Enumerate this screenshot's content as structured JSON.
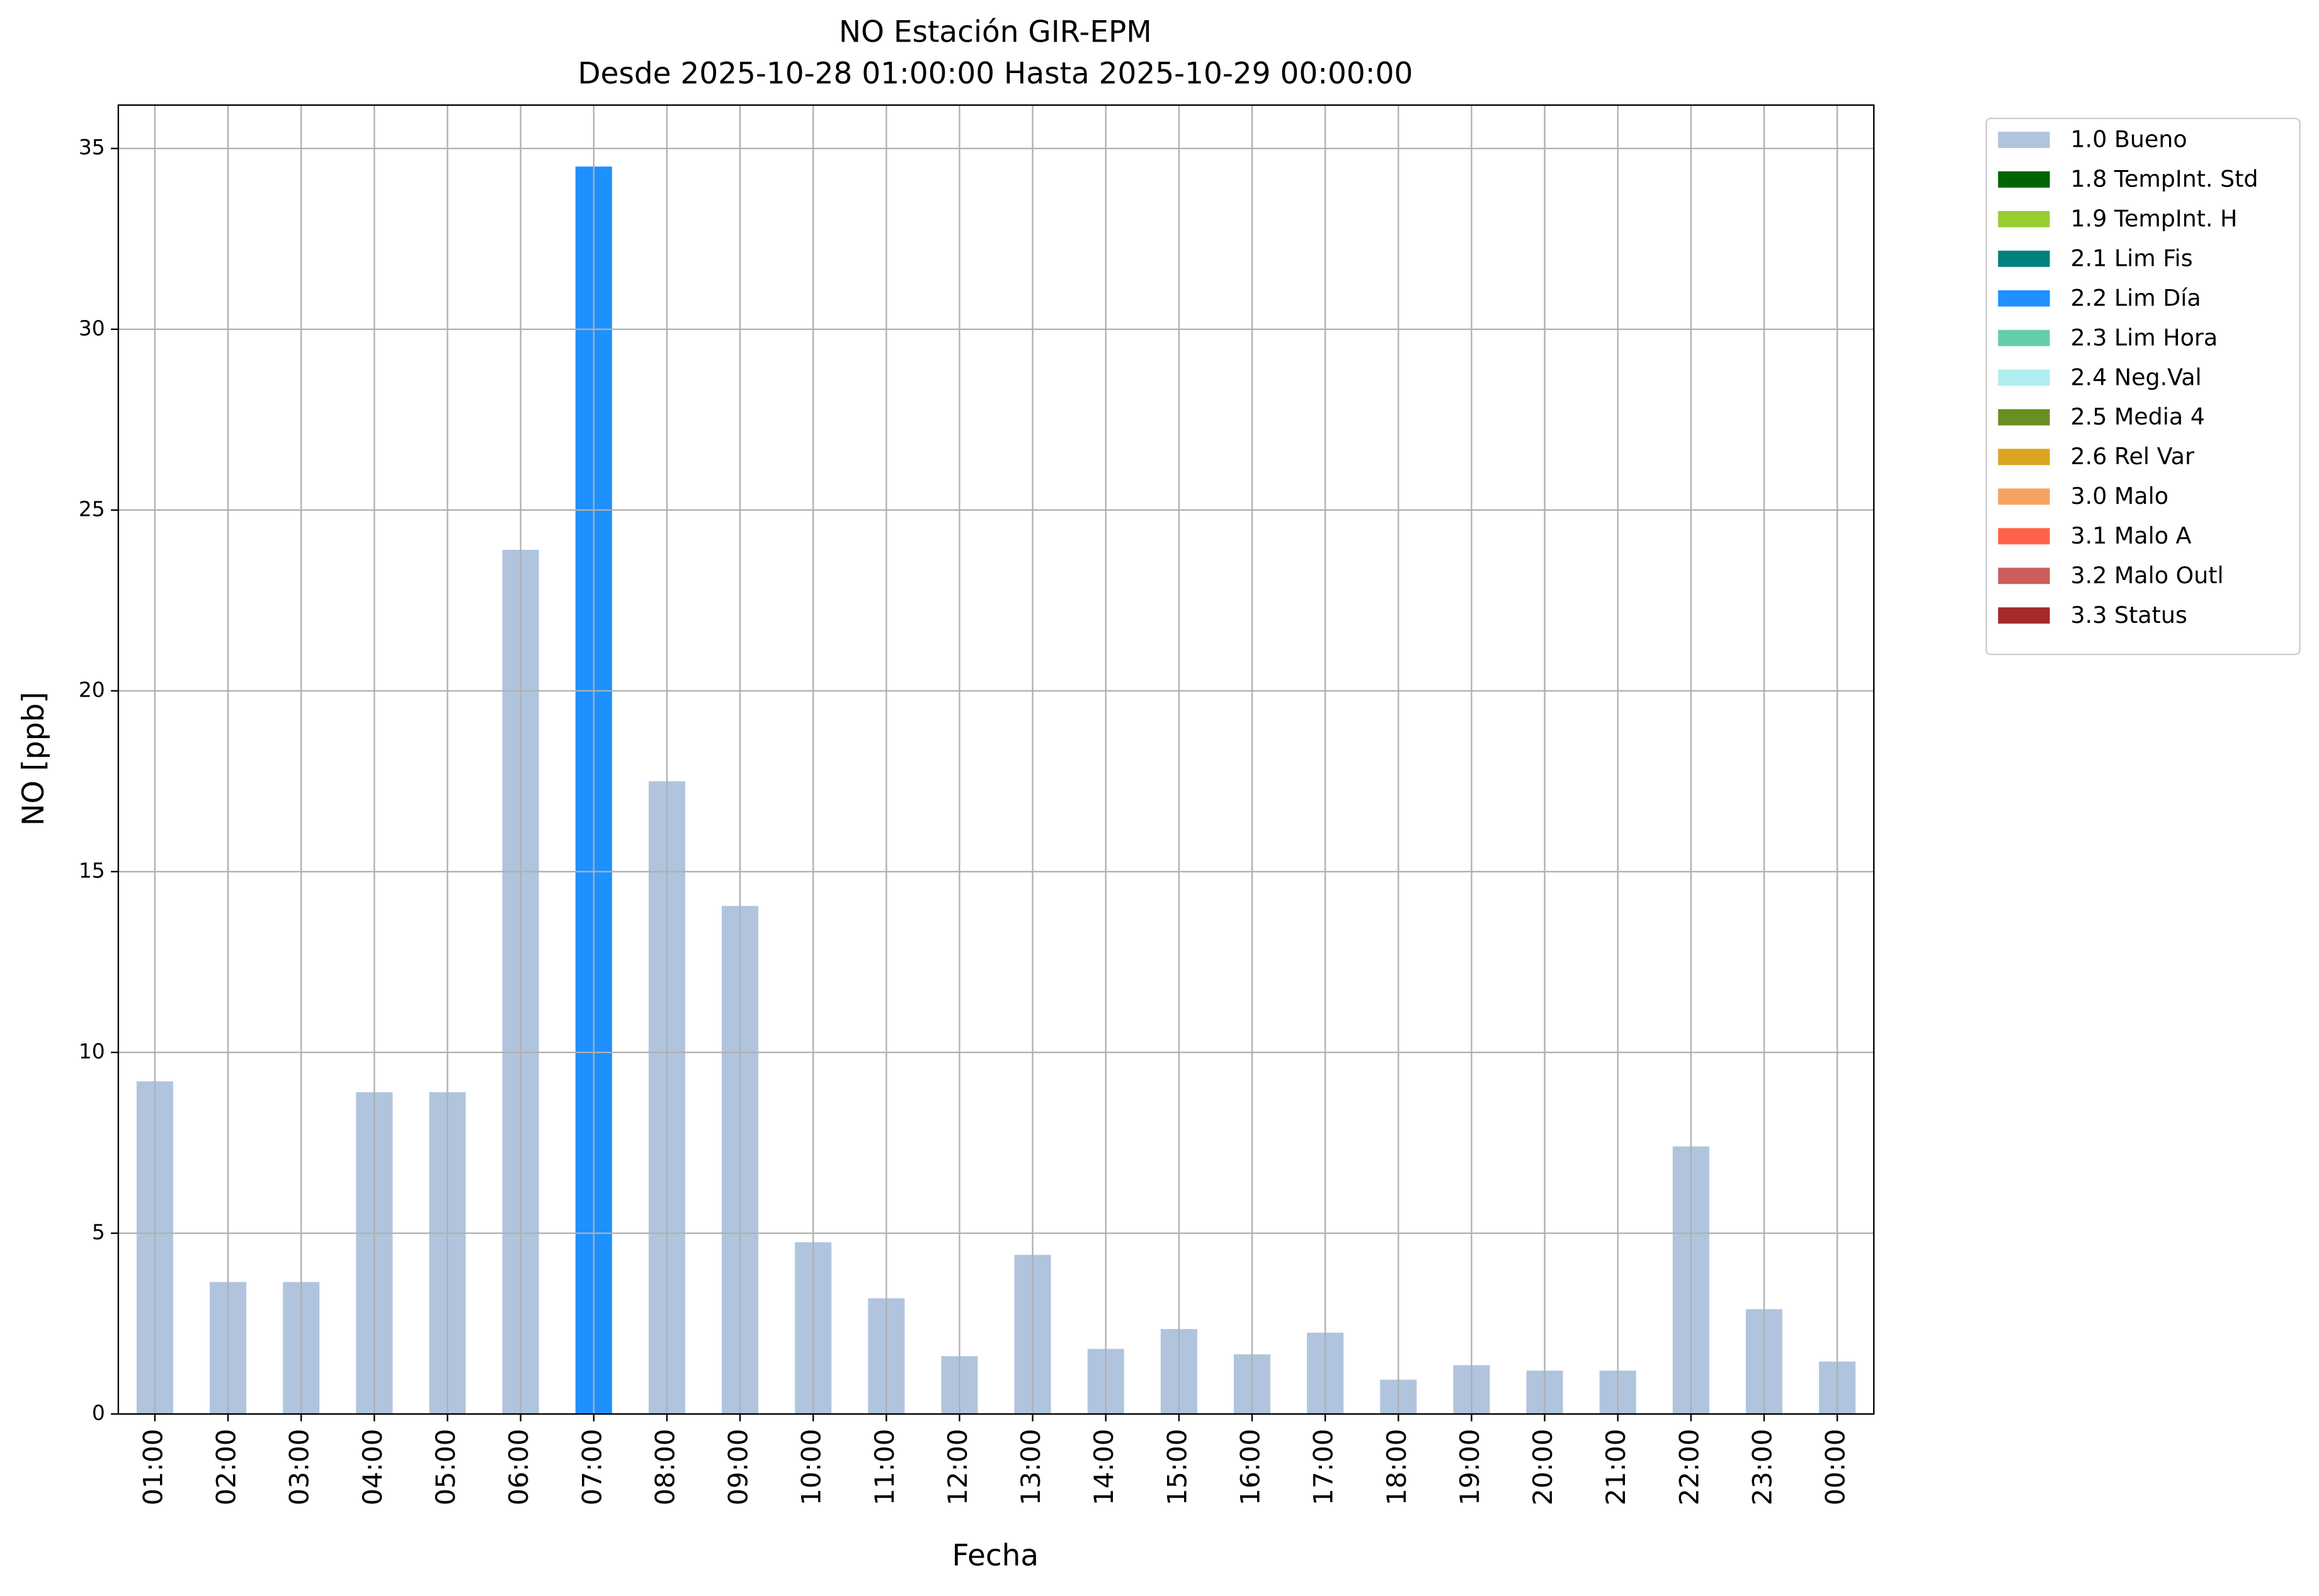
{
  "chart_data": {
    "type": "stacked-bar",
    "title": "NO Estación GIR-EPM",
    "subtitle": "Desde 2025-10-28 01:00:00 Hasta 2025-10-29 00:00:00",
    "x_label": "Fecha",
    "y_label": "NO [ppb]",
    "categories": [
      "01:00",
      "02:00",
      "03:00",
      "04:00",
      "05:00",
      "06:00",
      "07:00",
      "08:00",
      "09:00",
      "10:00",
      "11:00",
      "12:00",
      "13:00",
      "14:00",
      "15:00",
      "16:00",
      "17:00",
      "18:00",
      "19:00",
      "20:00",
      "21:00",
      "22:00",
      "23:00",
      "00:00"
    ],
    "series": [
      {
        "name": "1.0 Bueno",
        "color": "#b0c4de",
        "values": [
          9.2,
          3.65,
          3.65,
          8.9,
          8.9,
          23.9,
          null,
          17.5,
          14.05,
          4.75,
          3.2,
          1.6,
          4.4,
          1.8,
          2.35,
          1.65,
          2.25,
          0.95,
          1.35,
          1.2,
          1.2,
          7.4,
          2.9,
          1.45
        ]
      },
      {
        "name": "1.8 TempInt. Std",
        "color": "#006400",
        "values": [
          null,
          null,
          null,
          null,
          null,
          null,
          null,
          null,
          null,
          null,
          null,
          null,
          null,
          null,
          null,
          null,
          null,
          null,
          null,
          null,
          null,
          null,
          null,
          null
        ]
      },
      {
        "name": "1.9 TempInt. H",
        "color": "#9acd32",
        "values": [
          null,
          null,
          null,
          null,
          null,
          null,
          null,
          null,
          null,
          null,
          null,
          null,
          null,
          null,
          null,
          null,
          null,
          null,
          null,
          null,
          null,
          null,
          null,
          null
        ]
      },
      {
        "name": "2.1 Lim Fis",
        "color": "#008080",
        "values": [
          null,
          null,
          null,
          null,
          null,
          null,
          null,
          null,
          null,
          null,
          null,
          null,
          null,
          null,
          null,
          null,
          null,
          null,
          null,
          null,
          null,
          null,
          null,
          null
        ]
      },
      {
        "name": "2.2 Lim Día",
        "color": "#1e90ff",
        "values": [
          null,
          null,
          null,
          null,
          null,
          null,
          34.5,
          null,
          null,
          null,
          null,
          null,
          null,
          null,
          null,
          null,
          null,
          null,
          null,
          null,
          null,
          null,
          null,
          null
        ]
      },
      {
        "name": "2.3 Lim Hora",
        "color": "#66cdaa",
        "values": [
          null,
          null,
          null,
          null,
          null,
          null,
          null,
          null,
          null,
          null,
          null,
          null,
          null,
          null,
          null,
          null,
          null,
          null,
          null,
          null,
          null,
          null,
          null,
          null
        ]
      },
      {
        "name": "2.4 Neg.Val",
        "color": "#afeeee",
        "values": [
          null,
          null,
          null,
          null,
          null,
          null,
          null,
          null,
          null,
          null,
          null,
          null,
          null,
          null,
          null,
          null,
          null,
          null,
          null,
          null,
          null,
          null,
          null,
          null
        ]
      },
      {
        "name": "2.5 Media 4",
        "color": "#6b8e23",
        "values": [
          null,
          null,
          null,
          null,
          null,
          null,
          null,
          null,
          null,
          null,
          null,
          null,
          null,
          null,
          null,
          null,
          null,
          null,
          null,
          null,
          null,
          null,
          null,
          null
        ]
      },
      {
        "name": "2.6 Rel Var",
        "color": "#daa520",
        "values": [
          null,
          null,
          null,
          null,
          null,
          null,
          null,
          null,
          null,
          null,
          null,
          null,
          null,
          null,
          null,
          null,
          null,
          null,
          null,
          null,
          null,
          null,
          null,
          null
        ]
      },
      {
        "name": "3.0 Malo",
        "color": "#f4a460",
        "values": [
          null,
          null,
          null,
          null,
          null,
          null,
          null,
          null,
          null,
          null,
          null,
          null,
          null,
          null,
          null,
          null,
          null,
          null,
          null,
          null,
          null,
          null,
          null,
          null
        ]
      },
      {
        "name": "3.1 Malo A",
        "color": "#ff6347",
        "values": [
          null,
          null,
          null,
          null,
          null,
          null,
          null,
          null,
          null,
          null,
          null,
          null,
          null,
          null,
          null,
          null,
          null,
          null,
          null,
          null,
          null,
          null,
          null,
          null
        ]
      },
      {
        "name": "3.2 Malo Outl",
        "color": "#cd5c5c",
        "values": [
          null,
          null,
          null,
          null,
          null,
          null,
          null,
          null,
          null,
          null,
          null,
          null,
          null,
          null,
          null,
          null,
          null,
          null,
          null,
          null,
          null,
          null,
          null,
          null
        ]
      },
      {
        "name": "3.3 Status",
        "color": "#a52a2a",
        "values": [
          null,
          null,
          null,
          null,
          null,
          null,
          null,
          null,
          null,
          null,
          null,
          null,
          null,
          null,
          null,
          null,
          null,
          null,
          null,
          null,
          null,
          null,
          null,
          null
        ]
      }
    ],
    "ylim": [
      0,
      36.2
    ],
    "yticks": [
      0,
      5,
      10,
      15,
      20,
      25,
      30,
      35
    ],
    "grid": true,
    "legend": "outside-right"
  }
}
